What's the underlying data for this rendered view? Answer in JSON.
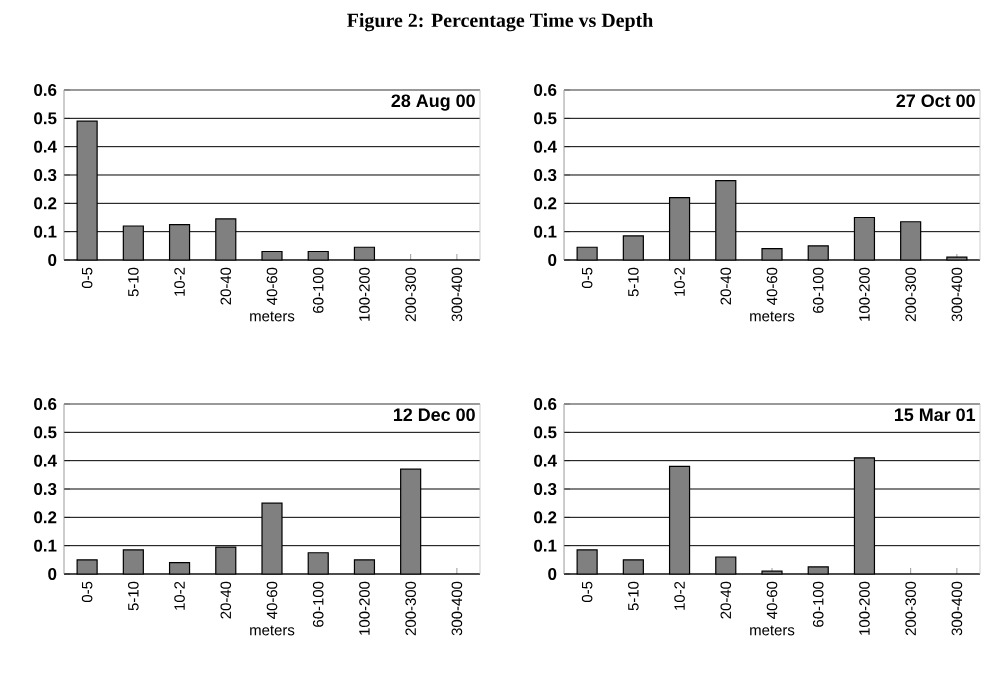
{
  "chart_data": [
    {
      "type": "bar",
      "title": "Figure 2: Percentage Time vs Depth",
      "subtitle": "28 Aug 00",
      "xlabel": "meters",
      "categories": [
        "0-5",
        "5-10",
        "10-2",
        "20-40",
        "40-60",
        "60-100",
        "100-200",
        "200-300",
        "300-400"
      ],
      "values": [
        0.49,
        0.12,
        0.125,
        0.145,
        0.03,
        0.03,
        0.045,
        null,
        null
      ],
      "color": "#808080",
      "ylim": [
        0,
        0.6
      ],
      "yticks": [
        0,
        0.1,
        0.2,
        0.3,
        0.4,
        0.5,
        0.6
      ],
      "grid": "y"
    },
    {
      "type": "bar",
      "subtitle": "27 Oct 00",
      "xlabel": "meters",
      "categories": [
        "0-5",
        "5-10",
        "10-2",
        "20-40",
        "40-60",
        "60-100",
        "100-200",
        "200-300",
        "300-400"
      ],
      "values": [
        0.045,
        0.085,
        0.22,
        0.28,
        0.04,
        0.05,
        0.15,
        0.135,
        0.01
      ],
      "color": "#808080",
      "ylim": [
        0,
        0.6
      ],
      "yticks": [
        0,
        0.1,
        0.2,
        0.3,
        0.4,
        0.5,
        0.6
      ],
      "grid": "y"
    },
    {
      "type": "bar",
      "subtitle": "12 Dec 00",
      "xlabel": "meters",
      "categories": [
        "0-5",
        "5-10",
        "10-2",
        "20-40",
        "40-60",
        "60-100",
        "100-200",
        "200-300",
        "300-400"
      ],
      "values": [
        0.05,
        0.085,
        0.04,
        0.095,
        0.25,
        0.075,
        0.05,
        0.37,
        null
      ],
      "color": "#808080",
      "ylim": [
        0,
        0.6
      ],
      "yticks": [
        0,
        0.1,
        0.2,
        0.3,
        0.4,
        0.5,
        0.6
      ],
      "grid": "y"
    },
    {
      "type": "bar",
      "subtitle": "15 Mar 01",
      "xlabel": "meters",
      "categories": [
        "0-5",
        "5-10",
        "10-2",
        "20-40",
        "40-60",
        "60-100",
        "100-200",
        "200-300",
        "300-400"
      ],
      "values": [
        0.085,
        0.05,
        0.38,
        0.06,
        0.01,
        0.025,
        0.41,
        null,
        null
      ],
      "color": "#808080",
      "ylim": [
        0,
        0.6
      ],
      "yticks": [
        0,
        0.1,
        0.2,
        0.3,
        0.4,
        0.5,
        0.6
      ],
      "grid": "y"
    }
  ]
}
